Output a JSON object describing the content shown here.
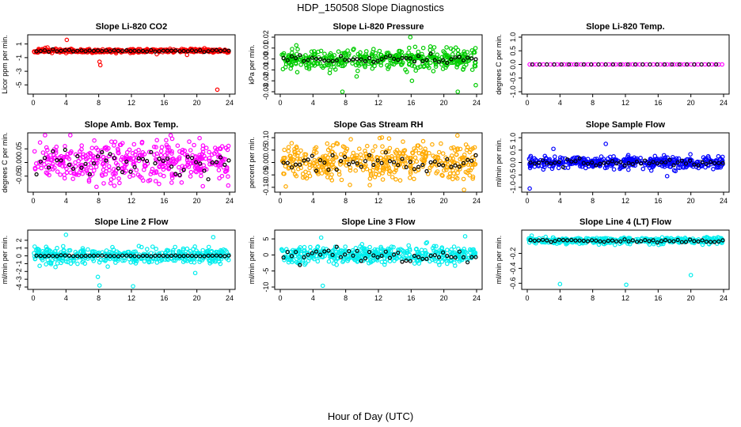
{
  "title": "HDP_150508  Slope Diagnostics",
  "xlabel": "Hour of Day (UTC)",
  "chart_data": [
    {
      "type": "scatter",
      "title": "Slope Li-820 CO2",
      "ylabel": "Licor ppm per min.",
      "color": "#ff0000",
      "xlim": [
        0,
        24
      ],
      "ylim": [
        -6,
        2
      ],
      "xticks": [
        0,
        4,
        8,
        12,
        16,
        20,
        24
      ],
      "yticks": [
        -5,
        -3,
        -1,
        1
      ],
      "ytick_labels": [
        "-5",
        "-3",
        "-1",
        "1"
      ],
      "spread": 0.25,
      "seed": 11,
      "outliers": [
        [
          4.1,
          1.6
        ],
        [
          8.1,
          -1.6
        ],
        [
          8.2,
          -2.1
        ],
        [
          18.8,
          -0.6
        ],
        [
          22.5,
          -5.7
        ],
        [
          15.1,
          -0.5
        ]
      ],
      "black_jitter": 0.12
    },
    {
      "type": "scatter",
      "title": "Slope Li-820 Pressure",
      "ylabel": "kPa per min.",
      "color": "#00cc00",
      "xlim": [
        0,
        24
      ],
      "ylim": [
        -0.03,
        0.02
      ],
      "xticks": [
        0,
        4,
        8,
        12,
        16,
        20,
        24
      ],
      "yticks": [
        -0.03,
        -0.02,
        -0.01,
        0.0,
        0.01,
        0.02
      ],
      "ytick_labels": [
        "-0.03",
        "-0.02",
        "-0.01",
        "0.00",
        "0.01",
        "0.02"
      ],
      "spread": 0.008,
      "seed": 23,
      "outliers": [
        [
          15.9,
          0.023
        ],
        [
          16.1,
          -0.02
        ],
        [
          7.6,
          -0.03
        ],
        [
          21.7,
          -0.03
        ],
        [
          23.9,
          -0.024
        ]
      ],
      "black_jitter": 0.003
    },
    {
      "type": "scatter",
      "title": "Slope Li-820 Temp.",
      "ylabel": "degrees C per min.",
      "color": "#ff00ff",
      "xlim": [
        0,
        24
      ],
      "ylim": [
        -1,
        1
      ],
      "xticks": [
        0,
        4,
        8,
        12,
        16,
        20,
        24
      ],
      "yticks": [
        -1,
        -0.5,
        0,
        0.5,
        1
      ],
      "ytick_labels": [
        "-1.0",
        "-0.5",
        "0.0",
        "0.5",
        "1.0"
      ],
      "spread": 0.0,
      "seed": 5,
      "outliers": [],
      "black_jitter": 0.0,
      "flat": true
    },
    {
      "type": "scatter",
      "title": "Slope Amb. Box Temp.",
      "ylabel": "degrees C per min.",
      "color": "#ff00ff",
      "xlim": [
        0,
        24
      ],
      "ylim": [
        -0.1,
        0.1
      ],
      "xticks": [
        0,
        4,
        8,
        12,
        16,
        20,
        24
      ],
      "yticks": [
        -0.05,
        0.0,
        0.05
      ],
      "ytick_labels": [
        "-0.05",
        "0.00",
        "0.05"
      ],
      "spread": 0.065,
      "seed": 37,
      "outliers": [],
      "black_jitter": 0.035
    },
    {
      "type": "scatter",
      "title": "Slope Gas Stream RH",
      "ylabel": "percent per min.",
      "color": "#ffaa00",
      "xlim": [
        0,
        24
      ],
      "ylim": [
        -0.11,
        0.11
      ],
      "xticks": [
        0,
        4,
        8,
        12,
        16,
        20,
        24
      ],
      "yticks": [
        -0.1,
        -0.05,
        0.0,
        0.05,
        0.1
      ],
      "ytick_labels": [
        "-0.10",
        "-0.05",
        "0.00",
        "0.05",
        "0.10"
      ],
      "spread": 0.07,
      "seed": 41,
      "outliers": [],
      "black_jitter": 0.03
    },
    {
      "type": "scatter",
      "title": "Slope Sample Flow",
      "ylabel": "ml/min per min.",
      "color": "#0000ff",
      "xlim": [
        0,
        24
      ],
      "ylim": [
        -1.1,
        1.1
      ],
      "xticks": [
        0,
        4,
        8,
        12,
        16,
        20,
        24
      ],
      "yticks": [
        -1,
        -0.5,
        0,
        0.5,
        1
      ],
      "ytick_labels": [
        "-1.0",
        "-0.5",
        "0.0",
        "0.5",
        "1.0"
      ],
      "spread": 0.22,
      "seed": 53,
      "outliers": [
        [
          0.3,
          -1.05
        ],
        [
          9.6,
          0.75
        ],
        [
          17.1,
          -0.55
        ],
        [
          3.2,
          0.55
        ]
      ],
      "black_jitter": 0.12
    },
    {
      "type": "scatter",
      "title": "Slope Line 2 Flow",
      "ylabel": "ml/min per min.",
      "color": "#00eeee",
      "xlim": [
        0,
        24
      ],
      "ylim": [
        -4,
        3
      ],
      "xticks": [
        0,
        4,
        8,
        12,
        16,
        20,
        24
      ],
      "yticks": [
        -4,
        -3,
        -2,
        -1,
        0,
        1,
        2
      ],
      "ytick_labels": [
        "-4",
        "-3",
        "-2",
        "-1",
        "0",
        "1",
        "2"
      ],
      "spread": 0.8,
      "seed": 67,
      "outliers": [
        [
          8.1,
          -3.8
        ],
        [
          12.2,
          -3.9
        ],
        [
          7.9,
          -2.7
        ],
        [
          4.0,
          2.7
        ],
        [
          19.8,
          -2.2
        ],
        [
          22.0,
          2.4
        ]
      ],
      "black_jitter": 0.05
    },
    {
      "type": "scatter",
      "title": "Slope Line 3 Flow",
      "ylabel": "ml/min per min.",
      "color": "#00eeee",
      "xlim": [
        0,
        24
      ],
      "ylim": [
        -10,
        7
      ],
      "xticks": [
        0,
        4,
        8,
        12,
        16,
        20,
        24
      ],
      "yticks": [
        -10,
        -5,
        0,
        5
      ],
      "ytick_labels": [
        "-10",
        "-5",
        "0",
        "5"
      ],
      "spread": 2.3,
      "seed": 79,
      "outliers": [
        [
          5.2,
          -9.6
        ],
        [
          22.6,
          5.8
        ],
        [
          5.0,
          5.4
        ],
        [
          3.0,
          -3.0
        ]
      ],
      "black_jitter": 2.2
    },
    {
      "type": "scatter",
      "title": "Slope Line 4 (LT) Flow",
      "ylabel": "ml/min per min.",
      "color": "#00eeee",
      "xlim": [
        0,
        24
      ],
      "ylim": [
        -0.65,
        0.08
      ],
      "xticks": [
        0,
        4,
        8,
        12,
        16,
        20,
        24
      ],
      "yticks": [
        -0.6,
        -0.4,
        -0.2
      ],
      "ytick_labels": [
        "-0.6",
        "-0.4",
        "-0.2"
      ],
      "spread": 0.04,
      "center": -0.03,
      "seed": 97,
      "outliers": [
        [
          4.0,
          -0.61
        ],
        [
          12.1,
          -0.62
        ],
        [
          20.0,
          -0.49
        ]
      ],
      "black_jitter": 0.02
    }
  ]
}
